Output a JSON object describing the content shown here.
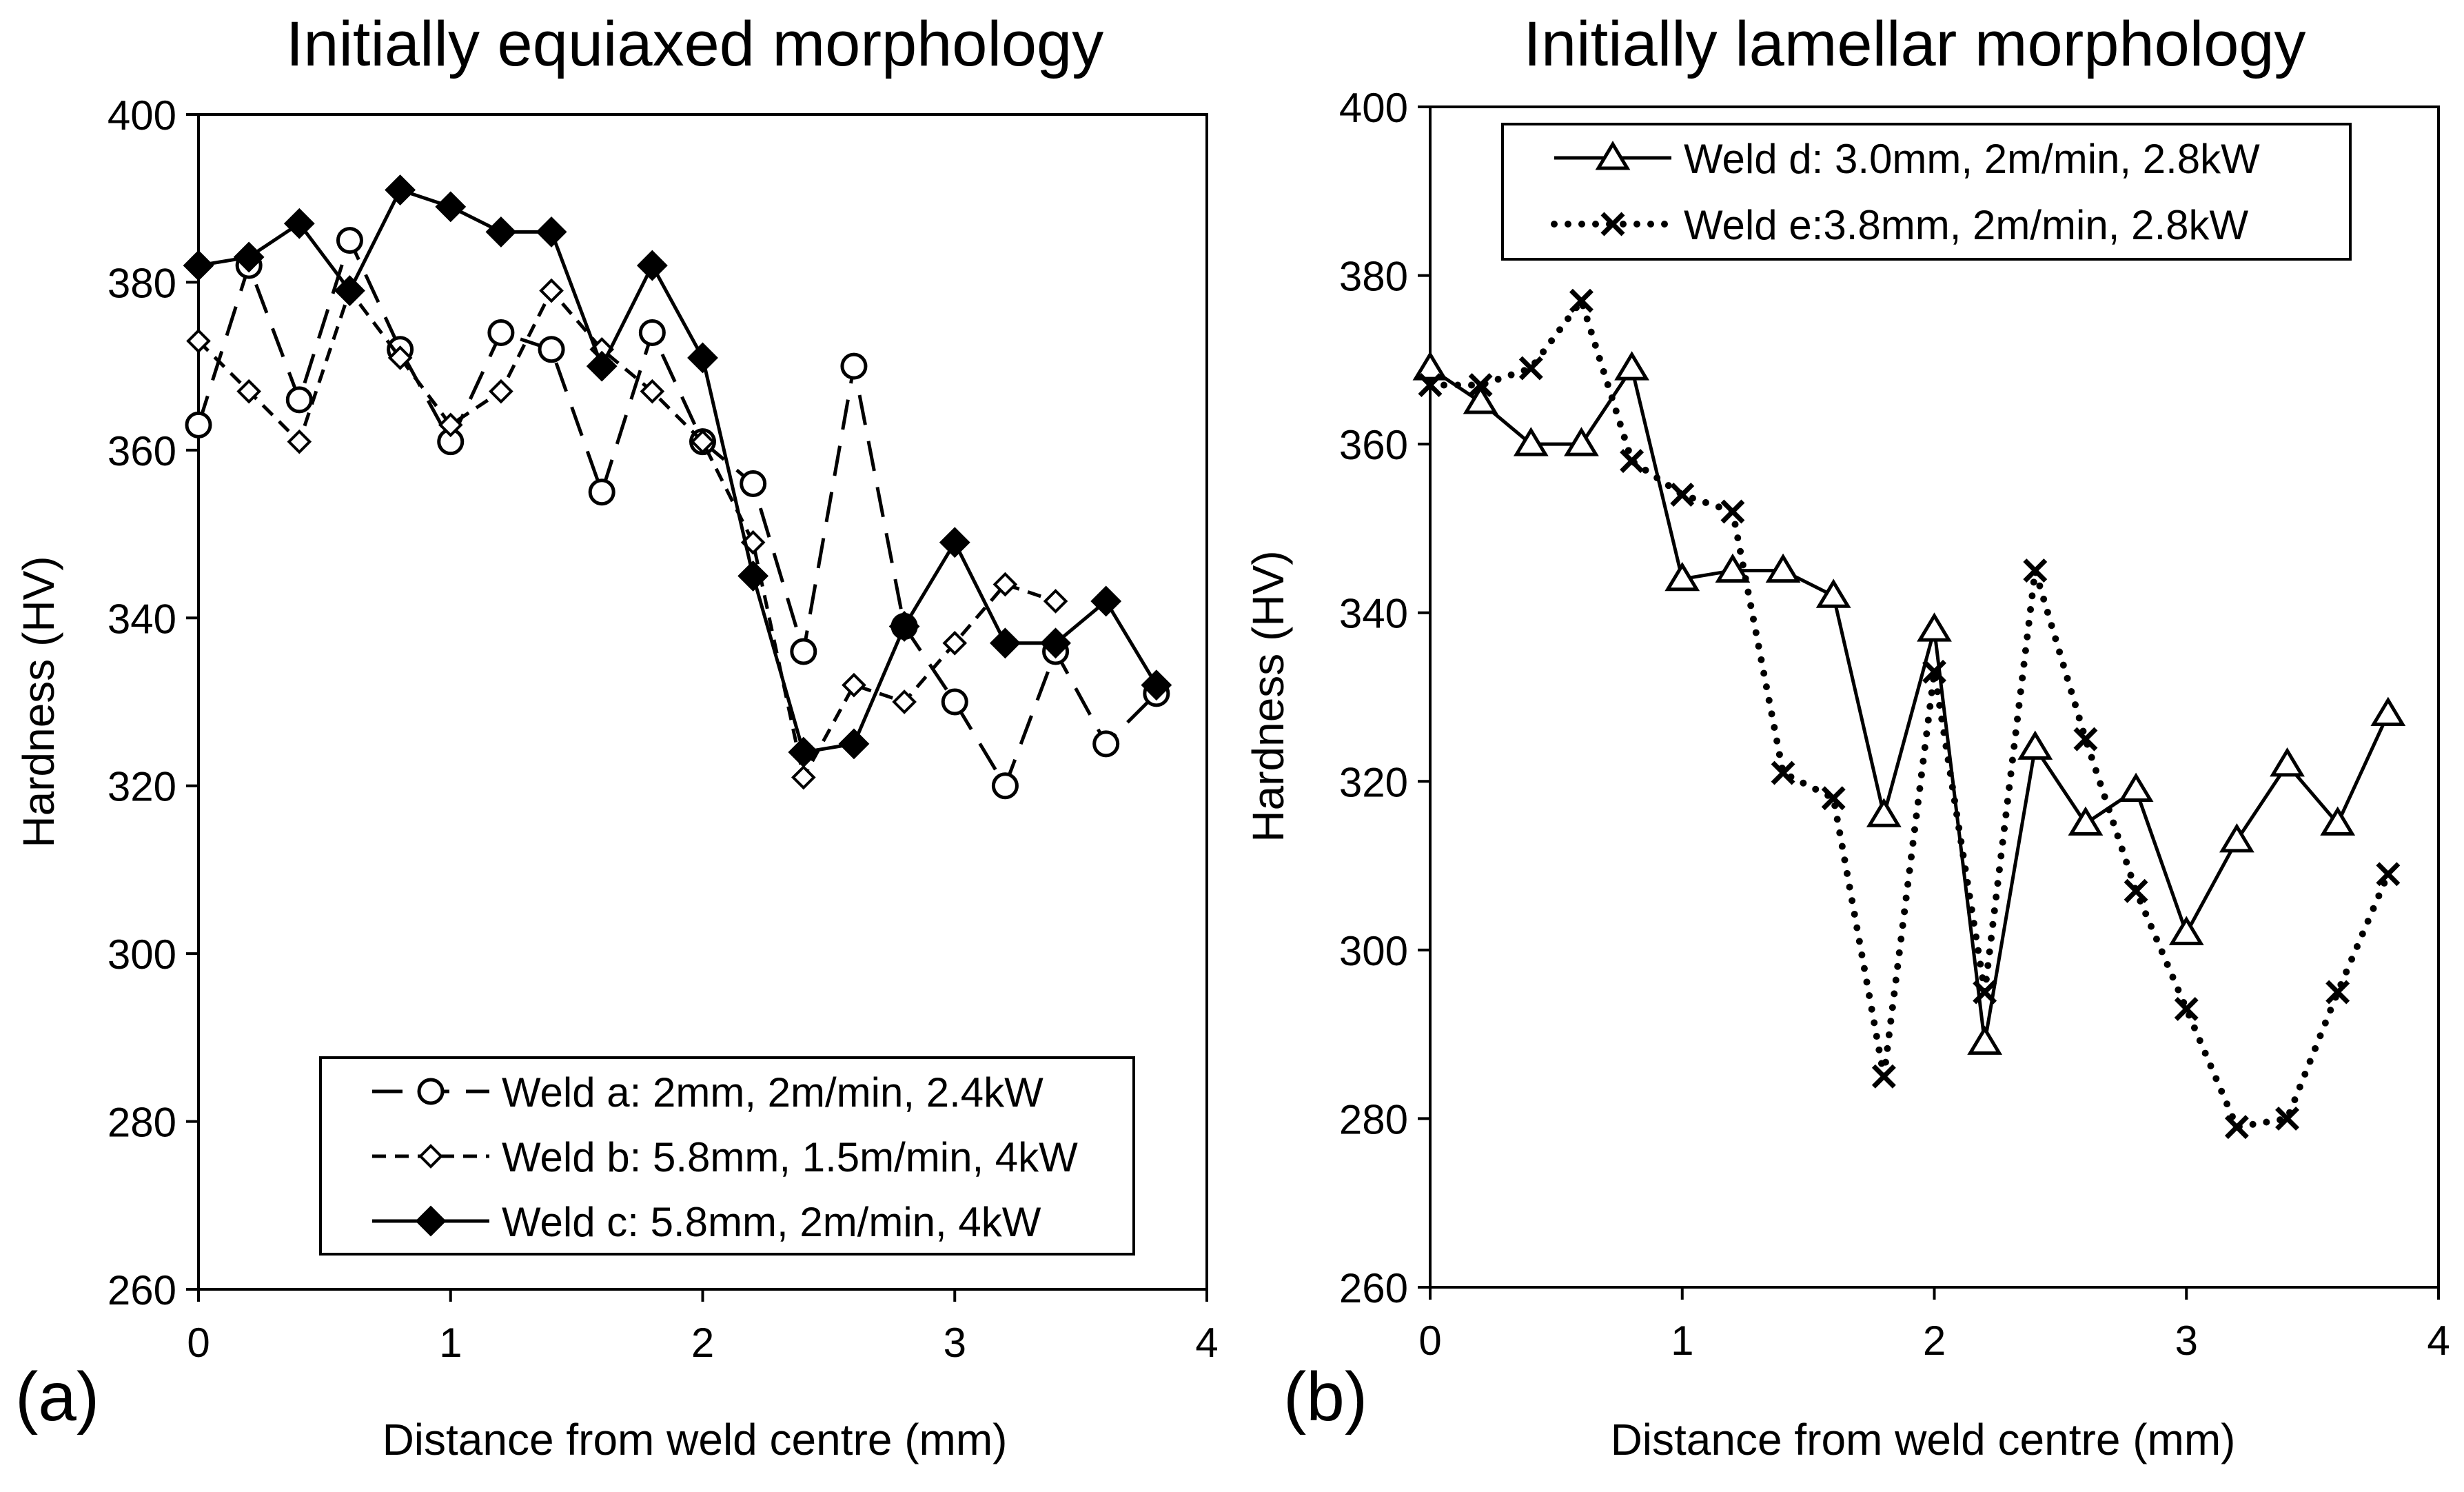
{
  "chart_data": [
    {
      "type": "line",
      "panel_label": "(a)",
      "title": "Initially equiaxed morphology",
      "xlabel": "Distance from weld centre (mm)",
      "ylabel": "Hardness (HV)",
      "xlim": [
        0,
        4
      ],
      "ylim": [
        260,
        400
      ],
      "xticks": [
        "0",
        "1",
        "2",
        "3",
        "4"
      ],
      "yticks": [
        "260",
        "280",
        "300",
        "320",
        "340",
        "360",
        "380",
        "400"
      ],
      "legend_position": "bottom-right",
      "series": [
        {
          "name": "Weld a: 2mm, 2m/min, 2.4kW",
          "marker": "circle-open",
          "line": "long-dash",
          "x": [
            0,
            0.2,
            0.4,
            0.6,
            0.8,
            1.0,
            1.2,
            1.4,
            1.6,
            1.8,
            2.0,
            2.2,
            2.4,
            2.6,
            2.8,
            3.0,
            3.2,
            3.4,
            3.6,
            3.8
          ],
          "y": [
            363,
            382,
            366,
            385,
            372,
            361,
            374,
            372,
            355,
            374,
            361,
            356,
            336,
            370,
            339,
            330,
            320,
            336,
            325,
            331
          ]
        },
        {
          "name": "Weld b: 5.8mm, 1.5m/min, 4kW",
          "marker": "diamond-open",
          "line": "short-dash",
          "x": [
            0,
            0.2,
            0.4,
            0.6,
            0.8,
            1.0,
            1.2,
            1.4,
            1.6,
            1.8,
            2.0,
            2.2,
            2.4,
            2.6,
            2.8,
            3.0,
            3.2,
            3.4
          ],
          "y": [
            373,
            367,
            361,
            379,
            371,
            363,
            367,
            379,
            372,
            367,
            361,
            349,
            321,
            332,
            330,
            337,
            344,
            342
          ]
        },
        {
          "name": "Weld c: 5.8mm, 2m/min, 4kW",
          "marker": "diamond-filled",
          "line": "solid",
          "x": [
            0,
            0.2,
            0.4,
            0.6,
            0.8,
            1.0,
            1.2,
            1.4,
            1.6,
            1.8,
            2.0,
            2.2,
            2.4,
            2.6,
            2.8,
            3.0,
            3.2,
            3.4,
            3.6,
            3.8
          ],
          "y": [
            382,
            383,
            387,
            379,
            391,
            389,
            386,
            386,
            370,
            382,
            371,
            345,
            324,
            325,
            339,
            349,
            337,
            337,
            342,
            332
          ]
        }
      ]
    },
    {
      "type": "line",
      "panel_label": "(b)",
      "title": "Initially lamellar morphology",
      "xlabel": "Distance from weld centre (mm)",
      "ylabel": "Hardness (HV)",
      "xlim": [
        0,
        4
      ],
      "ylim": [
        260,
        400
      ],
      "xticks": [
        "0",
        "1",
        "2",
        "3",
        "4"
      ],
      "yticks": [
        "260",
        "280",
        "300",
        "320",
        "340",
        "360",
        "380",
        "400"
      ],
      "legend_position": "top-right",
      "series": [
        {
          "name": "Weld d: 3.0mm, 2m/min, 2.8kW",
          "marker": "triangle-open",
          "line": "solid",
          "x": [
            0,
            0.2,
            0.4,
            0.6,
            0.8,
            1.0,
            1.2,
            1.4,
            1.6,
            1.8,
            2.0,
            2.2,
            2.4,
            2.6,
            2.8,
            3.0,
            3.2,
            3.4,
            3.6,
            3.8
          ],
          "y": [
            369,
            365,
            360,
            360,
            369,
            344,
            345,
            345,
            342,
            316,
            338,
            289,
            324,
            315,
            319,
            302,
            313,
            322,
            315,
            328
          ]
        },
        {
          "name": "Weld e:3.8mm, 2m/min, 2.8kW",
          "marker": "x",
          "line": "dotted",
          "x": [
            0,
            0.2,
            0.4,
            0.6,
            0.8,
            1.0,
            1.2,
            1.4,
            1.6,
            1.8,
            2.0,
            2.2,
            2.4,
            2.6,
            2.8,
            3.0,
            3.2,
            3.4,
            3.6,
            3.8
          ],
          "y": [
            367,
            367,
            369,
            377,
            358,
            354,
            352,
            321,
            318,
            285,
            333,
            295,
            345,
            325,
            307,
            293,
            279,
            280,
            295,
            309
          ]
        }
      ]
    }
  ]
}
